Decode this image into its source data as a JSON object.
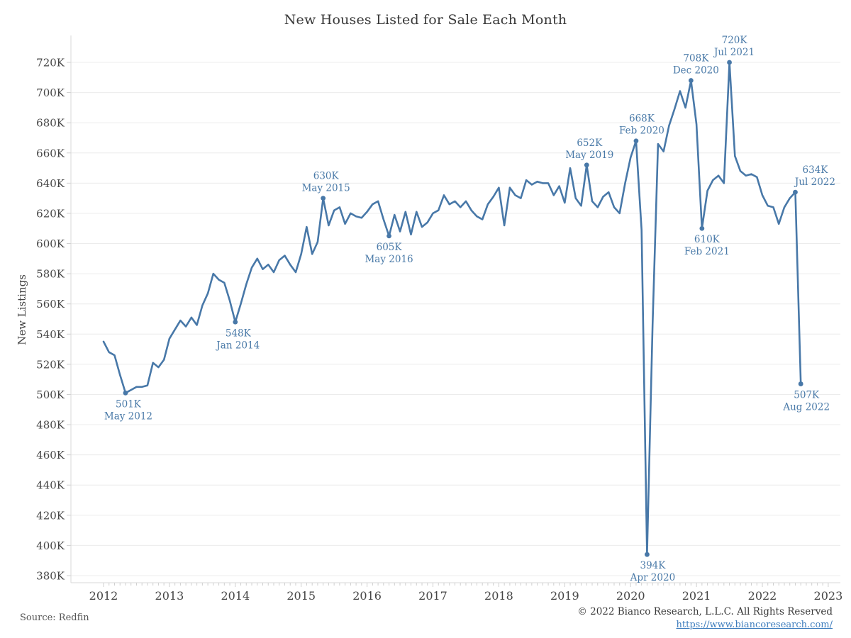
{
  "title": "New Houses Listed for Sale Each Month",
  "y_axis": {
    "label": "New Listings",
    "ticks": [
      "720K",
      "700K",
      "680K",
      "660K",
      "640K",
      "620K",
      "600K",
      "580K",
      "560K",
      "540K",
      "520K",
      "500K",
      "480K",
      "460K",
      "440K",
      "420K",
      "400K",
      "380K"
    ]
  },
  "x_axis": {
    "ticks": [
      "2012",
      "2013",
      "2014",
      "2015",
      "2016",
      "2017",
      "2018",
      "2019",
      "2020",
      "2021",
      "2022",
      "2023"
    ]
  },
  "footer": {
    "source": "Source: Redfin",
    "copyright": "© 2022 Bianco Research, L.L.C. All Rights Reserved",
    "link": "https://www.biancoresearch.com/"
  },
  "colors": {
    "line": "#4878a8",
    "annotation": "#4a7aa8",
    "grid": "#ececec",
    "axis": "#d8d8d8",
    "tick": "#cfcfcf",
    "tick_label": "#454545",
    "title": "#383838",
    "link": "#3e7dbd"
  },
  "chart_data": {
    "type": "line",
    "title": "New Houses Listed for Sale Each Month",
    "ylabel": "New Listings",
    "xlabel": "",
    "unit": "thousands of listings",
    "start_month": "2012-01",
    "end_month": "2022-08",
    "frequency": "monthly",
    "ylim": [
      380,
      720
    ],
    "y_step": 20,
    "grid": "horizontal",
    "legend": "none",
    "values": [
      535,
      528,
      526,
      513,
      501,
      503,
      505,
      505,
      506,
      521,
      518,
      523,
      537,
      543,
      549,
      545,
      551,
      546,
      559,
      567,
      580,
      576,
      574,
      562,
      548,
      560,
      573,
      584,
      590,
      583,
      586,
      581,
      589,
      592,
      586,
      581,
      593,
      611,
      593,
      601,
      630,
      612,
      622,
      624,
      613,
      620,
      618,
      617,
      621,
      626,
      628,
      616,
      605,
      619,
      608,
      621,
      606,
      621,
      611,
      614,
      620,
      622,
      632,
      626,
      628,
      624,
      628,
      622,
      618,
      616,
      626,
      631,
      637,
      612,
      637,
      632,
      630,
      642,
      639,
      641,
      640,
      640,
      632,
      638,
      627,
      650,
      630,
      625,
      652,
      628,
      624,
      631,
      634,
      624,
      620,
      640,
      657,
      668,
      609,
      394,
      546,
      666,
      661,
      678,
      689,
      701,
      690,
      708,
      679,
      610,
      635,
      642,
      645,
      640,
      720,
      658,
      648,
      645,
      646,
      644,
      632,
      625,
      624,
      613,
      624,
      630,
      634,
      507
    ],
    "annotations": [
      {
        "value_label": "501K",
        "date_label": "May 2012",
        "month": "2012-05",
        "value": 501,
        "placement": "below",
        "dx": 4
      },
      {
        "value_label": "548K",
        "date_label": "Jan 2014",
        "month": "2014-01",
        "value": 548,
        "placement": "below",
        "dx": 4
      },
      {
        "value_label": "630K",
        "date_label": "May 2015",
        "month": "2015-05",
        "value": 630,
        "placement": "above",
        "dx": 4
      },
      {
        "value_label": "605K",
        "date_label": "May 2016",
        "month": "2016-05",
        "value": 605,
        "placement": "below",
        "dx": 0
      },
      {
        "value_label": "652K",
        "date_label": "May 2019",
        "month": "2019-05",
        "value": 652,
        "placement": "above",
        "dx": 4
      },
      {
        "value_label": "668K",
        "date_label": "Feb 2020",
        "month": "2020-02",
        "value": 668,
        "placement": "above",
        "dx": 8
      },
      {
        "value_label": "394K",
        "date_label": "Apr 2020",
        "month": "2020-04",
        "value": 394,
        "placement": "below",
        "dx": 8
      },
      {
        "value_label": "708K",
        "date_label": "Dec 2020",
        "month": "2020-12",
        "value": 708,
        "placement": "above",
        "dx": 7
      },
      {
        "value_label": "610K",
        "date_label": "Feb 2021",
        "month": "2021-02",
        "value": 610,
        "placement": "below",
        "dx": 7
      },
      {
        "value_label": "720K",
        "date_label": "Jul 2021",
        "month": "2021-07",
        "value": 720,
        "placement": "above",
        "dx": 7
      },
      {
        "value_label": "634K",
        "date_label": "Jul 2022",
        "month": "2022-07",
        "value": 634,
        "placement": "above",
        "dx": 28
      },
      {
        "value_label": "507K",
        "date_label": "Aug 2022",
        "month": "2022-08",
        "value": 507,
        "placement": "below",
        "dx": 8
      }
    ]
  }
}
